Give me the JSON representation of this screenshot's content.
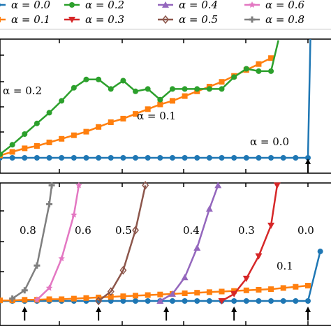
{
  "legend": {
    "entries": [
      {
        "label": "α = 0.0",
        "color": "#1f77b4",
        "marker": "circle"
      },
      {
        "label": "α = 0.1",
        "color": "#ff7f0e",
        "marker": "square"
      },
      {
        "label": "α = 0.2",
        "color": "#2ca02c",
        "marker": "circle"
      },
      {
        "label": "α = 0.3",
        "color": "#d62728",
        "marker": "triangle-down"
      },
      {
        "label": "α = 0.4",
        "color": "#9467bd",
        "marker": "triangle-up"
      },
      {
        "label": "α = 0.5",
        "color": "#8c564b",
        "marker": "diamond"
      },
      {
        "label": "α = 0.6",
        "color": "#e377c2",
        "marker": "star"
      },
      {
        "label": "α = 0.8",
        "color": "#7f7f7f",
        "marker": "plus"
      }
    ]
  },
  "chart_data": [
    {
      "type": "line",
      "panel": "top",
      "xlim": [
        0,
        26
      ],
      "ylim": [
        0,
        10
      ],
      "annotations": [
        {
          "text": "α = 0.2",
          "series": "α = 0.2"
        },
        {
          "text": "α = 0.1",
          "series": "α = 0.1"
        },
        {
          "text": "α = 0.0",
          "series": "α = 0.0"
        }
      ],
      "arrows_at_x": [
        25
      ],
      "series": [
        {
          "name": "α = 0.0",
          "color": "#1f77b4",
          "marker": "circle",
          "x": [
            0,
            1,
            2,
            3,
            4,
            5,
            6,
            7,
            8,
            9,
            10,
            11,
            12,
            13,
            14,
            15,
            16,
            17,
            18,
            19,
            20,
            21,
            22,
            23,
            24,
            25,
            25.2
          ],
          "y": [
            0,
            0,
            0,
            0,
            0,
            0,
            0,
            0,
            0,
            0,
            0,
            0,
            0,
            0,
            0,
            0,
            0,
            0,
            0,
            0,
            0,
            0,
            0,
            0,
            0,
            0,
            10
          ]
        },
        {
          "name": "α = 0.1",
          "color": "#ff7f0e",
          "marker": "square",
          "x": [
            0,
            1,
            2,
            3,
            4,
            5,
            6,
            7,
            8,
            9,
            10,
            11,
            12,
            13,
            14,
            15,
            16,
            17,
            18,
            19,
            20,
            21,
            22
          ],
          "y": [
            0.2,
            0.5,
            0.8,
            1.0,
            1.3,
            1.6,
            1.9,
            2.2,
            2.6,
            3.0,
            3.3,
            3.7,
            4.1,
            4.5,
            4.8,
            5.2,
            5.6,
            6.0,
            6.4,
            6.9,
            7.4,
            7.9,
            8.4
          ]
        },
        {
          "name": "α = 0.2",
          "color": "#2ca02c",
          "marker": "circle",
          "x": [
            0,
            1,
            2,
            3,
            4,
            5,
            6,
            7,
            8,
            9,
            10,
            11,
            12,
            13,
            14,
            15,
            16,
            17,
            18,
            19,
            20,
            21,
            22,
            22.6
          ],
          "y": [
            0.3,
            1.1,
            2.0,
            2.9,
            3.8,
            4.8,
            5.9,
            6.6,
            6.6,
            5.8,
            6.5,
            5.6,
            5.8,
            4.9,
            5.8,
            5.8,
            5.8,
            5.8,
            5.8,
            6.8,
            7.5,
            7.3,
            7.3,
            9.9
          ]
        }
      ]
    },
    {
      "type": "line",
      "panel": "bottom",
      "xlim": [
        0,
        26
      ],
      "ylim": [
        0,
        10
      ],
      "annotations": [
        {
          "text": "0.8",
          "series": "α = 0.8"
        },
        {
          "text": "0.6",
          "series": "α = 0.6"
        },
        {
          "text": "0.5",
          "series": "α = 0.5"
        },
        {
          "text": "0.4",
          "series": "α = 0.4"
        },
        {
          "text": "0.3",
          "series": "α = 0.3"
        },
        {
          "text": "0.0",
          "series": "α = 0.0"
        },
        {
          "text": "0.1",
          "series": "α = 0.1"
        }
      ],
      "arrows_at_x": [
        2,
        8,
        13.5,
        19,
        25
      ],
      "series": [
        {
          "name": "α = 0.0",
          "color": "#1f77b4",
          "marker": "circle",
          "x": [
            0,
            1,
            2,
            3,
            4,
            5,
            6,
            7,
            8,
            9,
            10,
            11,
            12,
            13,
            14,
            15,
            16,
            17,
            18,
            19,
            20,
            21,
            22,
            23,
            24,
            25,
            26
          ],
          "y": [
            0,
            0,
            0,
            0,
            0,
            0,
            0,
            0,
            0,
            0,
            0,
            0,
            0,
            0,
            0,
            0,
            0,
            0,
            0,
            0,
            0,
            0,
            0,
            0,
            0,
            0,
            4.2
          ]
        },
        {
          "name": "α = 0.1",
          "color": "#ff7f0e",
          "marker": "square",
          "x": [
            0,
            1,
            2,
            3,
            4,
            5,
            6,
            7,
            8,
            9,
            10,
            11,
            12,
            13,
            14,
            15,
            16,
            17,
            18,
            19,
            20,
            21,
            22,
            23,
            24,
            25
          ],
          "y": [
            0.05,
            0.05,
            0.1,
            0.1,
            0.15,
            0.15,
            0.2,
            0.25,
            0.3,
            0.35,
            0.4,
            0.45,
            0.5,
            0.55,
            0.6,
            0.65,
            0.7,
            0.75,
            0.8,
            0.85,
            0.9,
            0.95,
            1.0,
            1.1,
            1.2,
            1.3
          ]
        },
        {
          "name": "α = 0.3",
          "color": "#d62728",
          "marker": "triangle-down",
          "x": [
            18,
            19,
            20,
            21,
            22,
            22.5
          ],
          "y": [
            0,
            0.6,
            1.9,
            3.8,
            6.4,
            9.8
          ]
        },
        {
          "name": "α = 0.4",
          "color": "#9467bd",
          "marker": "triangle-up",
          "x": [
            13,
            14,
            15,
            16,
            17,
            17.7
          ],
          "y": [
            0,
            0.6,
            2.0,
            4.5,
            7.8,
            9.8
          ]
        },
        {
          "name": "α = 0.5",
          "color": "#8c564b",
          "marker": "diamond",
          "x": [
            8,
            9,
            10,
            11,
            11.8
          ],
          "y": [
            0,
            0.8,
            2.6,
            6.0,
            9.8
          ]
        },
        {
          "name": "α = 0.6",
          "color": "#e377c2",
          "marker": "star",
          "x": [
            3,
            4,
            5,
            6,
            6.4
          ],
          "y": [
            0.1,
            1.1,
            3.6,
            7.3,
            9.8
          ]
        },
        {
          "name": "α = 0.8",
          "color": "#7f7f7f",
          "marker": "plus",
          "x": [
            1,
            2,
            3,
            4,
            4.2
          ],
          "y": [
            0.2,
            0.9,
            3.0,
            8.2,
            9.8
          ]
        }
      ]
    }
  ]
}
